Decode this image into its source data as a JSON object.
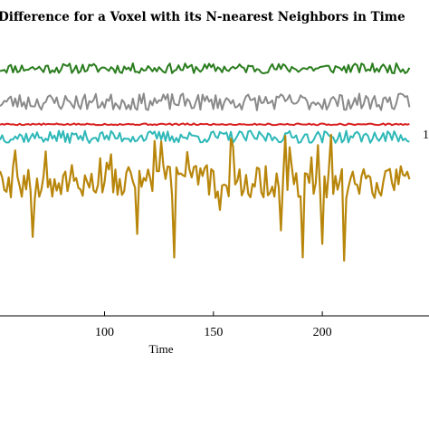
{
  "chart_data": {
    "type": "line",
    "title": "Difference for a Voxel with its N-nearest Neighbors in Time",
    "xlabel": "Time",
    "ylabel": "",
    "xlim": [
      52,
      244
    ],
    "ylim": [
      0,
      1
    ],
    "x_ticks": [
      100,
      150,
      200
    ],
    "x_tick_labels": [
      "100",
      "150",
      "200"
    ],
    "series": [
      {
        "color": "#2a7d1e",
        "level": 0.885,
        "amplitude": 0.018,
        "seed": 11,
        "spikes": false
      },
      {
        "color": "#8a8a8a",
        "level": 0.765,
        "amplitude": 0.03,
        "seed": 23,
        "spikes": false
      },
      {
        "color": "#d82020",
        "level": 0.685,
        "amplitude": 0.003,
        "seed": 5,
        "spikes": false
      },
      {
        "color": "#2fb8b8",
        "level": 0.64,
        "amplitude": 0.022,
        "seed": 37,
        "spikes": false
      },
      {
        "color": "#b8860b",
        "level": 0.48,
        "amplitude": 0.06,
        "seed": 53,
        "spikes": true
      }
    ],
    "annotation": "1"
  }
}
